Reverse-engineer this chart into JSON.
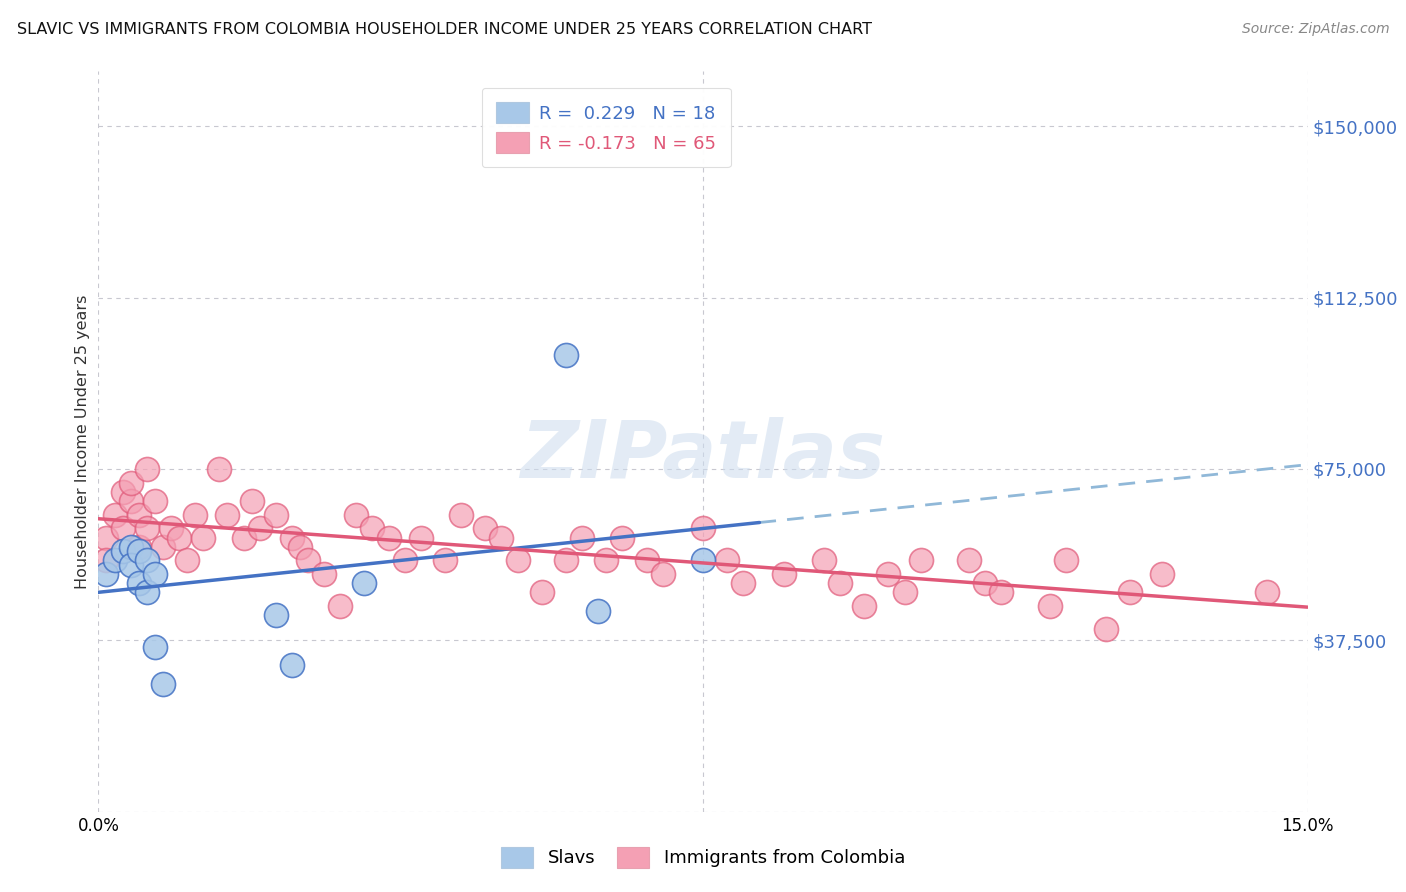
{
  "title": "SLAVIC VS IMMIGRANTS FROM COLOMBIA HOUSEHOLDER INCOME UNDER 25 YEARS CORRELATION CHART",
  "source": "Source: ZipAtlas.com",
  "ylabel": "Householder Income Under 25 years",
  "watermark": "ZIPatlas",
  "legend_label1": "Slavs",
  "legend_label2": "Immigrants from Colombia",
  "r1": 0.229,
  "n1": 18,
  "r2": -0.173,
  "n2": 65,
  "color_slavs": "#a8c8e8",
  "color_colombia": "#f4a0b4",
  "color_slavs_line": "#4472c4",
  "color_colombia_line": "#e05878",
  "color_dashed": "#90b8d8",
  "yticks": [
    0,
    37500,
    75000,
    112500,
    150000
  ],
  "ytick_labels": [
    "",
    "$37,500",
    "$75,000",
    "$112,500",
    "$150,000"
  ],
  "xlim": [
    0.0,
    0.15
  ],
  "ylim": [
    0,
    162000
  ],
  "slavs_x": [
    0.001,
    0.002,
    0.003,
    0.004,
    0.004,
    0.005,
    0.005,
    0.006,
    0.006,
    0.007,
    0.007,
    0.008,
    0.022,
    0.024,
    0.033,
    0.058,
    0.062,
    0.075
  ],
  "slavs_y": [
    52000,
    55000,
    57000,
    58000,
    54000,
    57000,
    50000,
    55000,
    48000,
    52000,
    36000,
    28000,
    43000,
    32000,
    50000,
    100000,
    44000,
    55000
  ],
  "colombia_x": [
    0.001,
    0.001,
    0.002,
    0.003,
    0.003,
    0.004,
    0.004,
    0.005,
    0.005,
    0.006,
    0.006,
    0.007,
    0.008,
    0.009,
    0.01,
    0.011,
    0.012,
    0.013,
    0.015,
    0.016,
    0.018,
    0.019,
    0.02,
    0.022,
    0.024,
    0.025,
    0.026,
    0.028,
    0.03,
    0.032,
    0.034,
    0.036,
    0.038,
    0.04,
    0.043,
    0.045,
    0.048,
    0.05,
    0.052,
    0.055,
    0.058,
    0.06,
    0.063,
    0.065,
    0.068,
    0.07,
    0.075,
    0.078,
    0.08,
    0.085,
    0.09,
    0.092,
    0.095,
    0.098,
    0.1,
    0.102,
    0.108,
    0.11,
    0.112,
    0.118,
    0.12,
    0.125,
    0.128,
    0.132,
    0.145
  ],
  "colombia_y": [
    60000,
    55000,
    65000,
    62000,
    70000,
    68000,
    72000,
    65000,
    58000,
    62000,
    75000,
    68000,
    58000,
    62000,
    60000,
    55000,
    65000,
    60000,
    75000,
    65000,
    60000,
    68000,
    62000,
    65000,
    60000,
    58000,
    55000,
    52000,
    45000,
    65000,
    62000,
    60000,
    55000,
    60000,
    55000,
    65000,
    62000,
    60000,
    55000,
    48000,
    55000,
    60000,
    55000,
    60000,
    55000,
    52000,
    62000,
    55000,
    50000,
    52000,
    55000,
    50000,
    45000,
    52000,
    48000,
    55000,
    55000,
    50000,
    48000,
    45000,
    55000,
    40000,
    48000,
    52000,
    48000
  ]
}
